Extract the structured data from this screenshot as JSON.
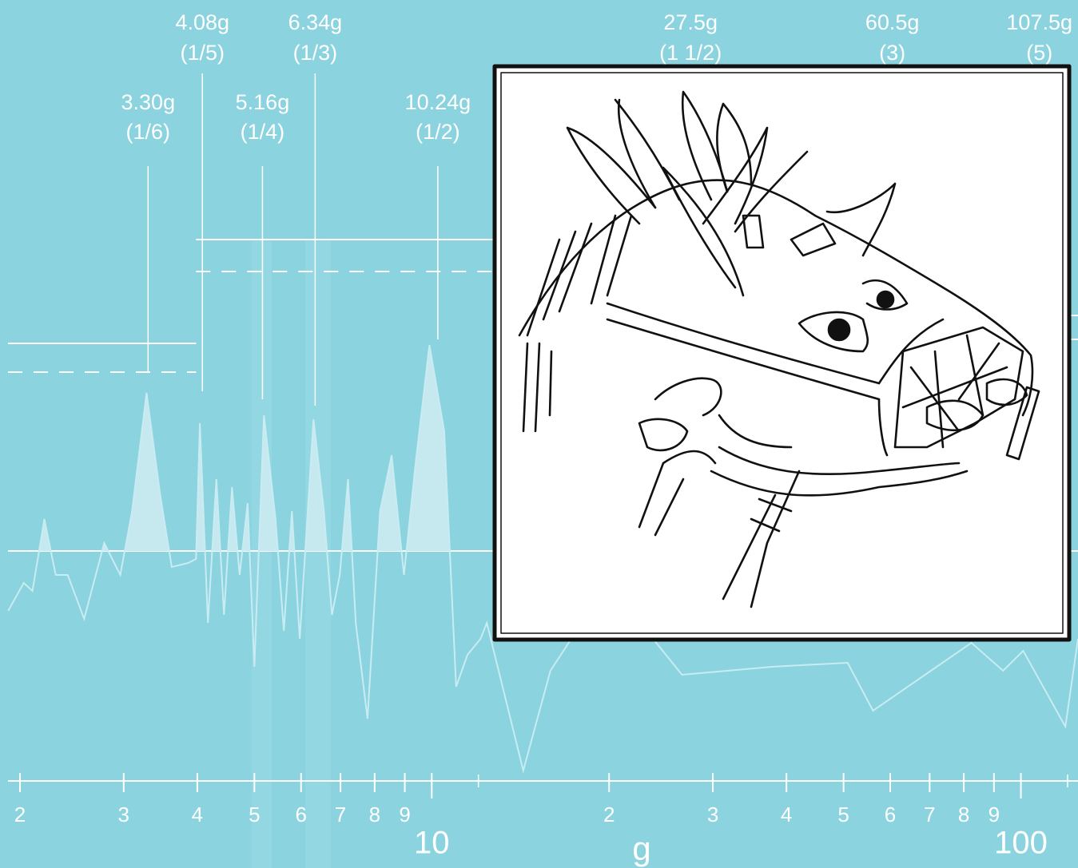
{
  "chart_data": {
    "type": "line",
    "x_label": "g",
    "xscale": "log",
    "xlim": [
      1.85,
      125
    ],
    "xticks": [
      2,
      3,
      4,
      5,
      6,
      7,
      8,
      9,
      10,
      {
        "value": 20,
        "label": "2"
      },
      {
        "value": 30,
        "label": "3"
      },
      {
        "value": 40,
        "label": "4"
      },
      {
        "value": 50,
        "label": "5"
      },
      {
        "value": 60,
        "label": "6"
      },
      {
        "value": 70,
        "label": "7"
      },
      {
        "value": 80,
        "label": "8"
      },
      {
        "value": 90,
        "label": "9"
      },
      100
    ],
    "xminor": [
      12,
      120
    ],
    "ylim": [
      -1.425,
      3.45
    ],
    "series": [
      {
        "color": "#c8ecf1",
        "fill": "#c5e9ef",
        "x": [
          1.91,
          2.03,
          2.1,
          2.2,
          2.3,
          2.41,
          2.57,
          2.78,
          2.96,
          3.1,
          3.28,
          3.46,
          3.62,
          3.86,
          3.98,
          4.04,
          4.17,
          4.31,
          4.44,
          4.58,
          4.72,
          4.87,
          5.0,
          5.19,
          5.43,
          5.61,
          5.79,
          5.97,
          6.3,
          6.56,
          6.77,
          6.98,
          7.21,
          7.43,
          7.78,
          8.17,
          8.55,
          8.97,
          9.39,
          9.91,
          10.5,
          11.0,
          11.5,
          12.1,
          12.4,
          14.3,
          15.9,
          19.9,
          26.6,
          37.8,
          50.8,
          56.1,
          82.4,
          93.3,
          100.9,
          119,
          125
        ],
        "values": [
          -0.375,
          -0.2,
          -0.25,
          0.2,
          -0.15,
          -0.15,
          -0.425,
          0.05,
          -0.15,
          0.25,
          0.99,
          0.35,
          -0.1,
          -0.075,
          -0.05,
          0.8,
          -0.45,
          0.45,
          -0.4,
          0.4,
          -0.15,
          0.3,
          -0.725,
          0.85,
          0.2,
          -0.5,
          0.25,
          -0.55,
          0.825,
          0.25,
          -0.4,
          -0.15,
          0.45,
          -0.45,
          -1.05,
          0.25,
          0.6,
          -0.15,
          0.55,
          1.29,
          0.75,
          -0.85,
          -0.65,
          -0.55,
          -0.45,
          -1.375,
          -0.75,
          -0.2,
          -0.775,
          -0.725,
          -0.7,
          -1.0,
          -0.575,
          -0.75,
          -0.625,
          -1.1,
          -0.55
        ]
      }
    ],
    "levels": [
      {
        "x": [
          1.85,
          3.98
        ],
        "value": 1.3,
        "style": "solid"
      },
      {
        "x": [
          1.85,
          3.98
        ],
        "value": 1.12,
        "style": "dashed"
      },
      {
        "x": [
          3.98,
          13.0
        ],
        "value": 1.95,
        "style": "solid"
      },
      {
        "x": [
          3.98,
          13.0
        ],
        "value": 1.75,
        "style": "dashed"
      },
      {
        "x": [
          118,
          125
        ],
        "value": 1.475,
        "style": "solid"
      },
      {
        "x": [
          118,
          125
        ],
        "value": 1.325,
        "style": "solid"
      },
      {
        "x": [
          1.85,
          125
        ],
        "value": 0,
        "style": "solid"
      }
    ],
    "annotations": [
      {
        "x": 3.3,
        "label": "3.30g",
        "fraction": "(1/6)"
      },
      {
        "x": 4.08,
        "label": "4.08g",
        "fraction": "(1/5)"
      },
      {
        "x": 5.16,
        "label": "5.16g",
        "fraction": "(1/4)"
      },
      {
        "x": 6.34,
        "label": "6.34g",
        "fraction": "(1/3)"
      },
      {
        "x": 10.24,
        "label": "10.24g",
        "fraction": "(1/2)"
      },
      {
        "x": 27.5,
        "label": "27.5g",
        "fraction": "(1 1/2)"
      },
      {
        "x": 60.5,
        "label": "60.5g",
        "fraction": "(3)"
      },
      {
        "x": 107.5,
        "label": "107.5g",
        "fraction": "(5)"
      }
    ]
  }
}
